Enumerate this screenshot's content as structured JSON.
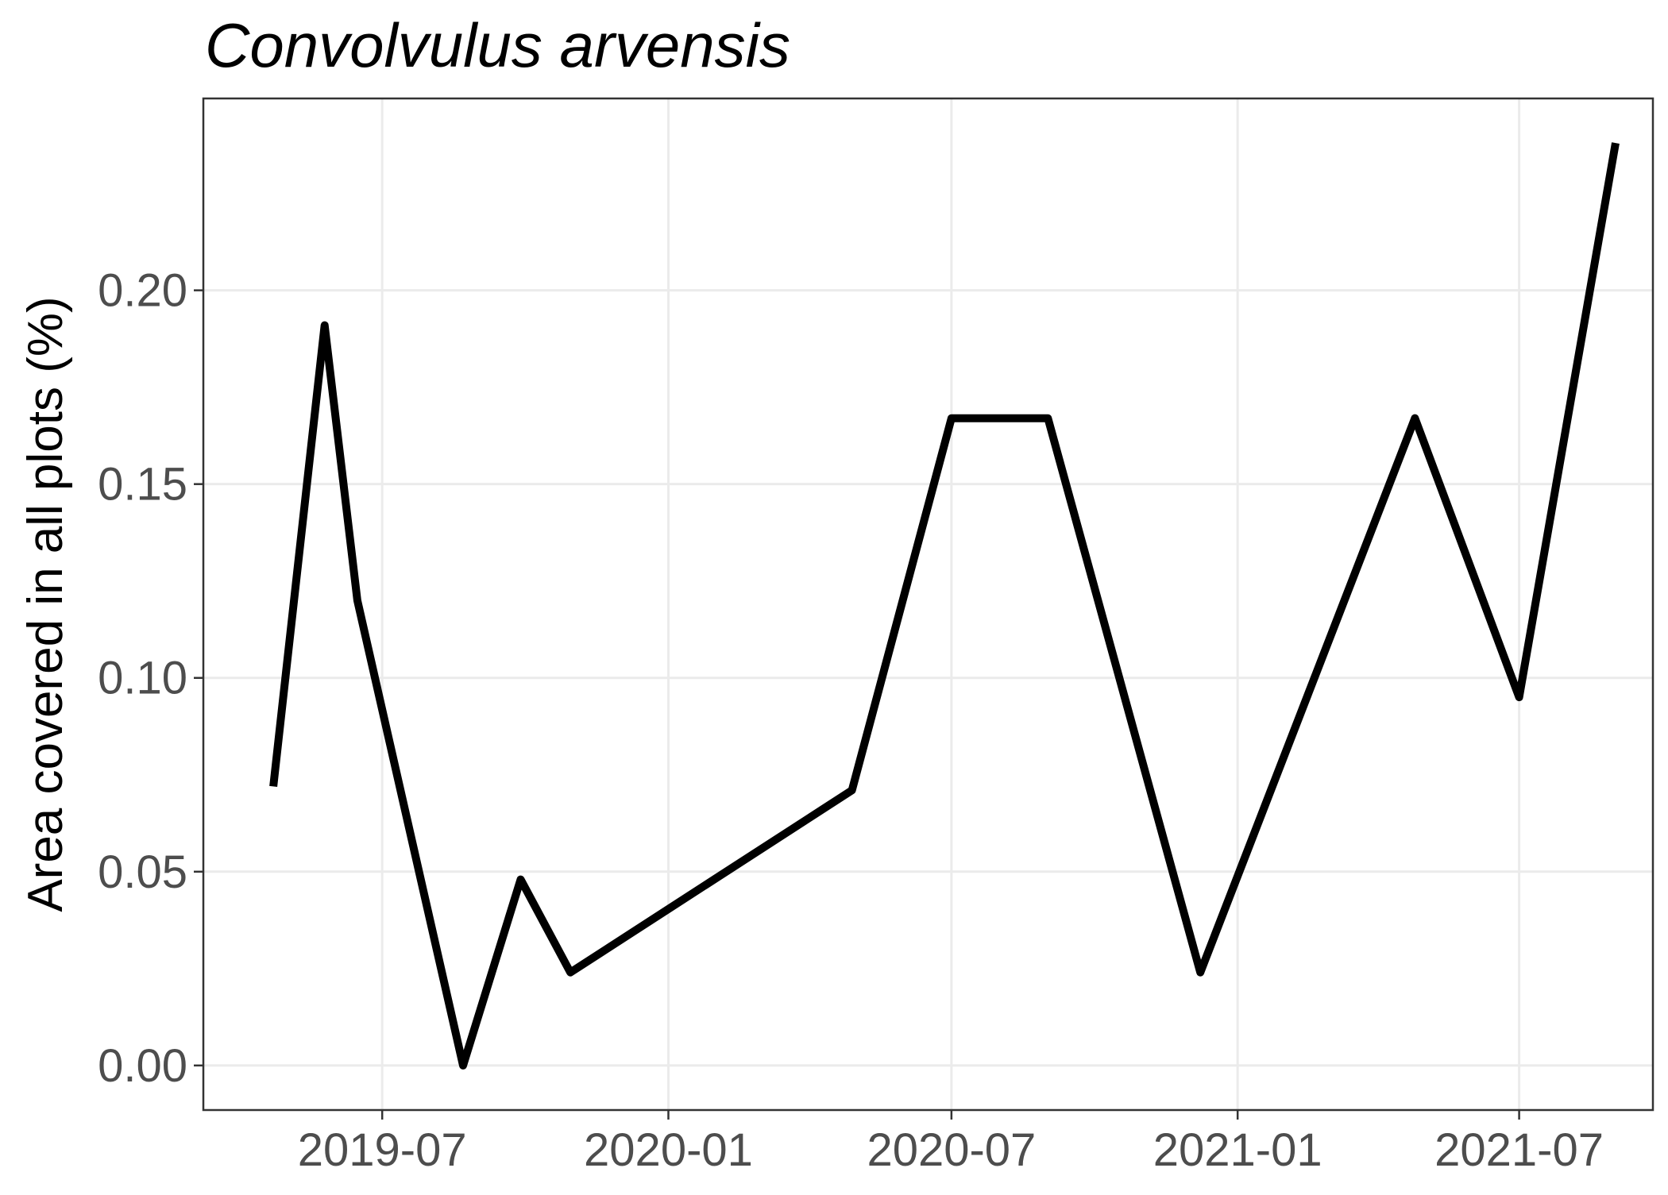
{
  "chart_data": {
    "type": "line",
    "title": "Convolvulus arvensis",
    "xlabel": "",
    "ylabel": "Area covered in all plots (%)",
    "x_type": "date",
    "xlim": [
      "2019-03-08",
      "2021-09-25"
    ],
    "ylim": [
      -0.0115,
      0.2495
    ],
    "x_ticks": [
      "2019-07-01",
      "2020-01-01",
      "2020-07-01",
      "2021-01-01",
      "2021-07-01"
    ],
    "x_tick_labels": [
      "2019-07",
      "2020-01",
      "2020-07",
      "2021-01",
      "2021-07"
    ],
    "y_ticks": [
      0.0,
      0.05,
      0.1,
      0.15,
      0.2
    ],
    "y_tick_labels": [
      "0.00",
      "0.05",
      "0.10",
      "0.15",
      "0.20"
    ],
    "grid": true,
    "legend": "none",
    "line_color": "#000000",
    "series": [
      {
        "x": [
          "2019-04-22",
          "2019-05-25",
          "2019-06-15",
          "2019-08-22",
          "2019-09-28",
          "2019-10-30",
          "2020-04-28",
          "2020-07-01",
          "2020-09-01",
          "2020-12-08",
          "2021-04-25",
          "2021-07-01",
          "2021-09-01"
        ],
        "values": [
          0.072,
          0.191,
          0.12,
          0.0,
          0.048,
          0.024,
          0.071,
          0.167,
          0.167,
          0.024,
          0.167,
          0.095,
          0.238
        ]
      }
    ]
  }
}
